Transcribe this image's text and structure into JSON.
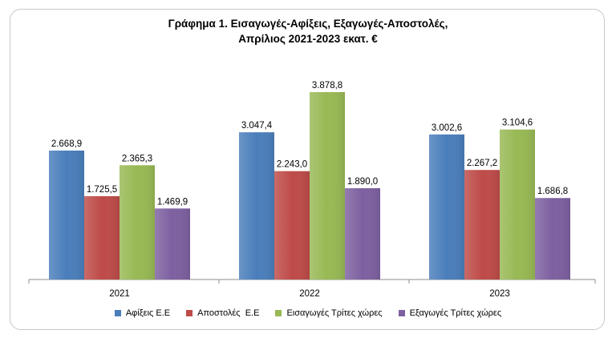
{
  "chart_data": {
    "type": "bar",
    "title_line1": "Γράφημα 1. Εισαγωγές-Αφίξεις, Εξαγωγές-Αποστολές,",
    "title_line2": "Απρίλιος 2021-2023 εκατ. €",
    "categories": [
      "2021",
      "2022",
      "2023"
    ],
    "series": [
      {
        "name": "Αφίξεις Ε.Ε",
        "values": [
          2668.9,
          3047.4,
          3002.6
        ],
        "labels": [
          "2.668,9",
          "3.047,4",
          "3.002,6"
        ],
        "color": "#4a7ebb"
      },
      {
        "name": "Αποστολές  Ε.Ε",
        "values": [
          1725.5,
          2243.0,
          2267.2
        ],
        "labels": [
          "1.725,5",
          "2.243,0",
          "2.267,2"
        ],
        "color": "#be4b48"
      },
      {
        "name": "Εισαγωγές Τρίτες χώρες",
        "values": [
          2365.3,
          3878.8,
          3104.6
        ],
        "labels": [
          "2.365,3",
          "3.878,8",
          "3.104,6"
        ],
        "color": "#98b954"
      },
      {
        "name": "Εξαγωγές Τρίτες χώρες",
        "values": [
          1469.9,
          1890.0,
          1686.8
        ],
        "labels": [
          "1.469,9",
          "1.890,0",
          "1.686,8"
        ],
        "color": "#7d60a0"
      }
    ],
    "ylim": [
      0,
      4000
    ],
    "grid": false,
    "legend_position": "bottom"
  }
}
